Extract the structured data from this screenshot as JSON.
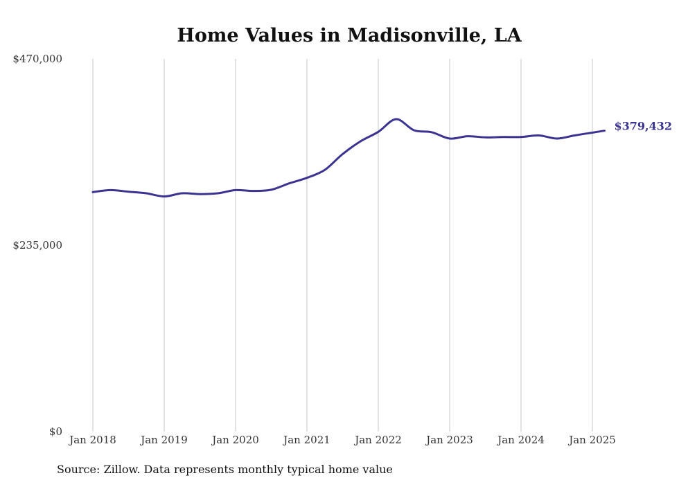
{
  "chart_data": {
    "type": "line",
    "title": "Home Values in Madisonville, LA",
    "xlabel": "",
    "ylabel": "",
    "ylim": [
      0,
      470000
    ],
    "y_ticks": [
      {
        "value": 0,
        "label": "$0"
      },
      {
        "value": 235000,
        "label": "$235,000"
      },
      {
        "value": 470000,
        "label": "$470,000"
      }
    ],
    "x_ticks": [
      {
        "value": 2018.0,
        "label": "Jan 2018"
      },
      {
        "value": 2019.0,
        "label": "Jan 2019"
      },
      {
        "value": 2020.0,
        "label": "Jan 2020"
      },
      {
        "value": 2021.0,
        "label": "Jan 2021"
      },
      {
        "value": 2022.0,
        "label": "Jan 2022"
      },
      {
        "value": 2023.0,
        "label": "Jan 2023"
      },
      {
        "value": 2024.0,
        "label": "Jan 2024"
      },
      {
        "value": 2025.0,
        "label": "Jan 2025"
      }
    ],
    "xlim": [
      2017.85,
      2025.4
    ],
    "grid": "vertical",
    "series_color": "#3a3391",
    "series": [
      {
        "name": "",
        "x": [
          2018.0,
          2018.25,
          2018.5,
          2018.75,
          2019.0,
          2019.25,
          2019.5,
          2019.75,
          2020.0,
          2020.25,
          2020.5,
          2020.75,
          2021.0,
          2021.25,
          2021.5,
          2021.75,
          2022.0,
          2022.25,
          2022.5,
          2022.75,
          2023.0,
          2023.25,
          2023.5,
          2023.75,
          2024.0,
          2024.25,
          2024.5,
          2024.75,
          2025.0,
          2025.17
        ],
        "y": [
          302000,
          304500,
          302500,
          300500,
          296500,
          300500,
          299500,
          300500,
          304500,
          303500,
          305000,
          313000,
          320000,
          330000,
          350000,
          366000,
          378000,
          394000,
          380000,
          377500,
          369500,
          372500,
          371000,
          371500,
          371500,
          373500,
          369500,
          373500,
          377000,
          379432
        ]
      }
    ],
    "end_label": "$379,432",
    "source": "Source: Zillow. Data represents monthly typical home value"
  }
}
